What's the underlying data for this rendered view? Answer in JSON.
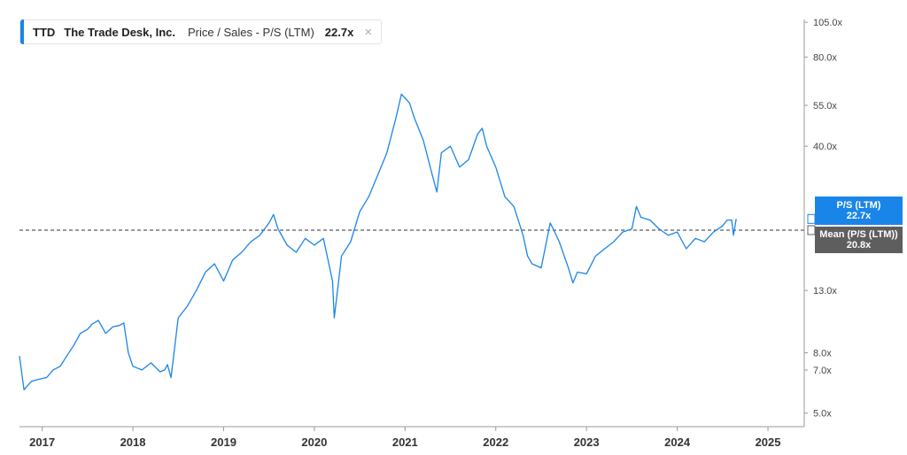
{
  "legend": {
    "ticker": "TTD",
    "company": "The Trade Desk, Inc.",
    "metric": "Price / Sales - P/S (LTM)",
    "value": "22.7x",
    "close": "×"
  },
  "colors": {
    "series": "#1a85e8",
    "mean_line": "#333333",
    "mean_badge": "#5e5e5e",
    "axis": "#999999"
  },
  "badges": {
    "current_label": "P/S (LTM)",
    "current_value": "22.7x",
    "mean_label": "Mean (P/S (LTM))",
    "mean_value": "20.8x"
  },
  "chart_data": {
    "type": "line",
    "y_scale": "log",
    "ylim": [
      4.5,
      115
    ],
    "xlim": [
      2016.75,
      2025.4
    ],
    "y_ticks": [
      {
        "v": 105,
        "label": "105.0x"
      },
      {
        "v": 80,
        "label": "80.0x"
      },
      {
        "v": 55,
        "label": "55.0x"
      },
      {
        "v": 40,
        "label": "40.0x"
      },
      {
        "v": 13,
        "label": "13.0x"
      },
      {
        "v": 8,
        "label": "8.0x"
      },
      {
        "v": 7,
        "label": "7.0x"
      },
      {
        "v": 5,
        "label": "5.0x"
      }
    ],
    "x_ticks": [
      {
        "v": 2017,
        "label": "2017"
      },
      {
        "v": 2018,
        "label": "2018"
      },
      {
        "v": 2019,
        "label": "2019"
      },
      {
        "v": 2020,
        "label": "2020"
      },
      {
        "v": 2021,
        "label": "2021"
      },
      {
        "v": 2022,
        "label": "2022"
      },
      {
        "v": 2023,
        "label": "2023"
      },
      {
        "v": 2024,
        "label": "2024"
      },
      {
        "v": 2025,
        "label": "2025"
      }
    ],
    "mean": 20.8,
    "last_value": 22.7,
    "series": [
      {
        "x": [
          2016.75,
          2016.8,
          2016.88,
          2016.95,
          2017.05,
          2017.12,
          2017.2,
          2017.27,
          2017.35,
          2017.42,
          2017.5,
          2017.55,
          2017.62,
          2017.7,
          2017.78,
          2017.85,
          2017.9,
          2017.95,
          2018.0,
          2018.1,
          2018.2,
          2018.3,
          2018.35,
          2018.38,
          2018.42,
          2018.5,
          2018.6,
          2018.7,
          2018.8,
          2018.9,
          2019.0,
          2019.1,
          2019.2,
          2019.3,
          2019.4,
          2019.5,
          2019.55,
          2019.6,
          2019.7,
          2019.8,
          2019.9,
          2020.0,
          2020.1,
          2020.2,
          2020.22,
          2020.3,
          2020.4,
          2020.5,
          2020.6,
          2020.7,
          2020.8,
          2020.9,
          2020.96,
          2021.05,
          2021.1,
          2021.2,
          2021.3,
          2021.35,
          2021.4,
          2021.5,
          2021.6,
          2021.7,
          2021.8,
          2021.85,
          2021.9,
          2022.0,
          2022.1,
          2022.2,
          2022.3,
          2022.35,
          2022.4,
          2022.5,
          2022.6,
          2022.65,
          2022.7,
          2022.8,
          2022.85,
          2022.9,
          2023.0,
          2023.1,
          2023.2,
          2023.3,
          2023.4,
          2023.5,
          2023.55,
          2023.6,
          2023.7,
          2023.8,
          2023.85,
          2023.9,
          2024.0,
          2024.1,
          2024.2,
          2024.3,
          2024.4,
          2024.5,
          2024.55,
          2024.6,
          2024.62,
          2024.65
        ],
        "y": [
          7.8,
          6.0,
          6.4,
          6.5,
          6.6,
          7.0,
          7.2,
          7.8,
          8.5,
          9.3,
          9.6,
          10.0,
          10.3,
          9.3,
          9.8,
          9.9,
          10.1,
          8.0,
          7.2,
          7.0,
          7.4,
          6.9,
          7.0,
          7.3,
          6.6,
          10.5,
          11.5,
          13.0,
          15.0,
          16.0,
          14.0,
          16.5,
          17.5,
          19.0,
          20.0,
          22.0,
          23.5,
          21.0,
          18.5,
          17.5,
          19.5,
          18.5,
          19.5,
          14.0,
          10.5,
          17.0,
          19.0,
          24.0,
          27.0,
          32.0,
          38.0,
          50.0,
          60.0,
          56.0,
          50.0,
          42.0,
          32.0,
          28.0,
          38.0,
          40.0,
          34.0,
          36.0,
          44.0,
          46.0,
          40.0,
          34.0,
          27.0,
          25.0,
          20.0,
          17.0,
          16.0,
          15.5,
          22.0,
          20.5,
          19.0,
          15.5,
          13.8,
          15.0,
          14.8,
          17.0,
          18.0,
          19.0,
          20.5,
          21.0,
          25.0,
          23.0,
          22.5,
          21.0,
          20.5,
          20.0,
          20.5,
          18.0,
          19.5,
          19.0,
          20.5,
          21.5,
          22.5,
          22.5,
          20.0,
          22.7
        ]
      }
    ]
  }
}
